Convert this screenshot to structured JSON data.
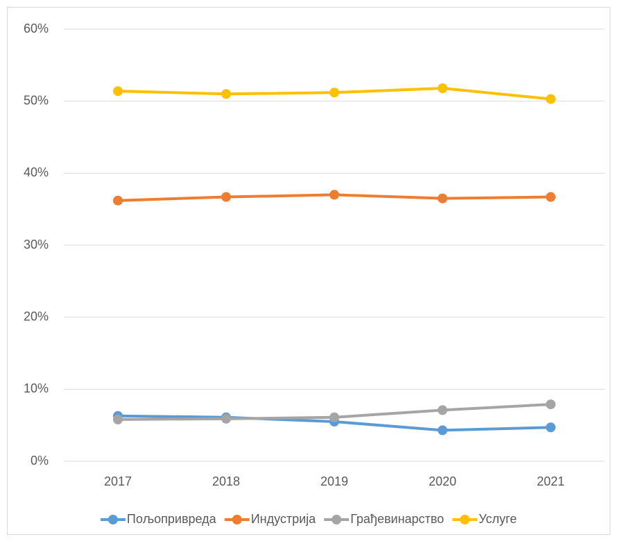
{
  "chart_data": {
    "type": "line",
    "categories": [
      "2017",
      "2018",
      "2019",
      "2020",
      "2021"
    ],
    "series": [
      {
        "name": "Пољопривреда",
        "color": "#5b9bd5",
        "values": [
          6.3,
          6.1,
          5.5,
          4.3,
          4.7
        ]
      },
      {
        "name": "Индустрија",
        "color": "#ed7d31",
        "values": [
          36.2,
          36.7,
          37.0,
          36.5,
          36.7
        ]
      },
      {
        "name": "Грађевинарство",
        "color": "#a5a5a5",
        "values": [
          5.8,
          5.9,
          6.1,
          7.1,
          7.9
        ]
      },
      {
        "name": "Услуге",
        "color": "#ffc000",
        "values": [
          51.4,
          51.0,
          51.2,
          51.8,
          50.3
        ]
      }
    ],
    "ylim": [
      0,
      60
    ],
    "yticks": [
      {
        "value": 0,
        "label": "0%"
      },
      {
        "value": 10,
        "label": "10%"
      },
      {
        "value": 20,
        "label": "20%"
      },
      {
        "value": 30,
        "label": "30%"
      },
      {
        "value": 40,
        "label": "40%"
      },
      {
        "value": 50,
        "label": "50%"
      },
      {
        "value": 60,
        "label": "60%"
      }
    ],
    "grid": true,
    "legend": "bottom"
  }
}
